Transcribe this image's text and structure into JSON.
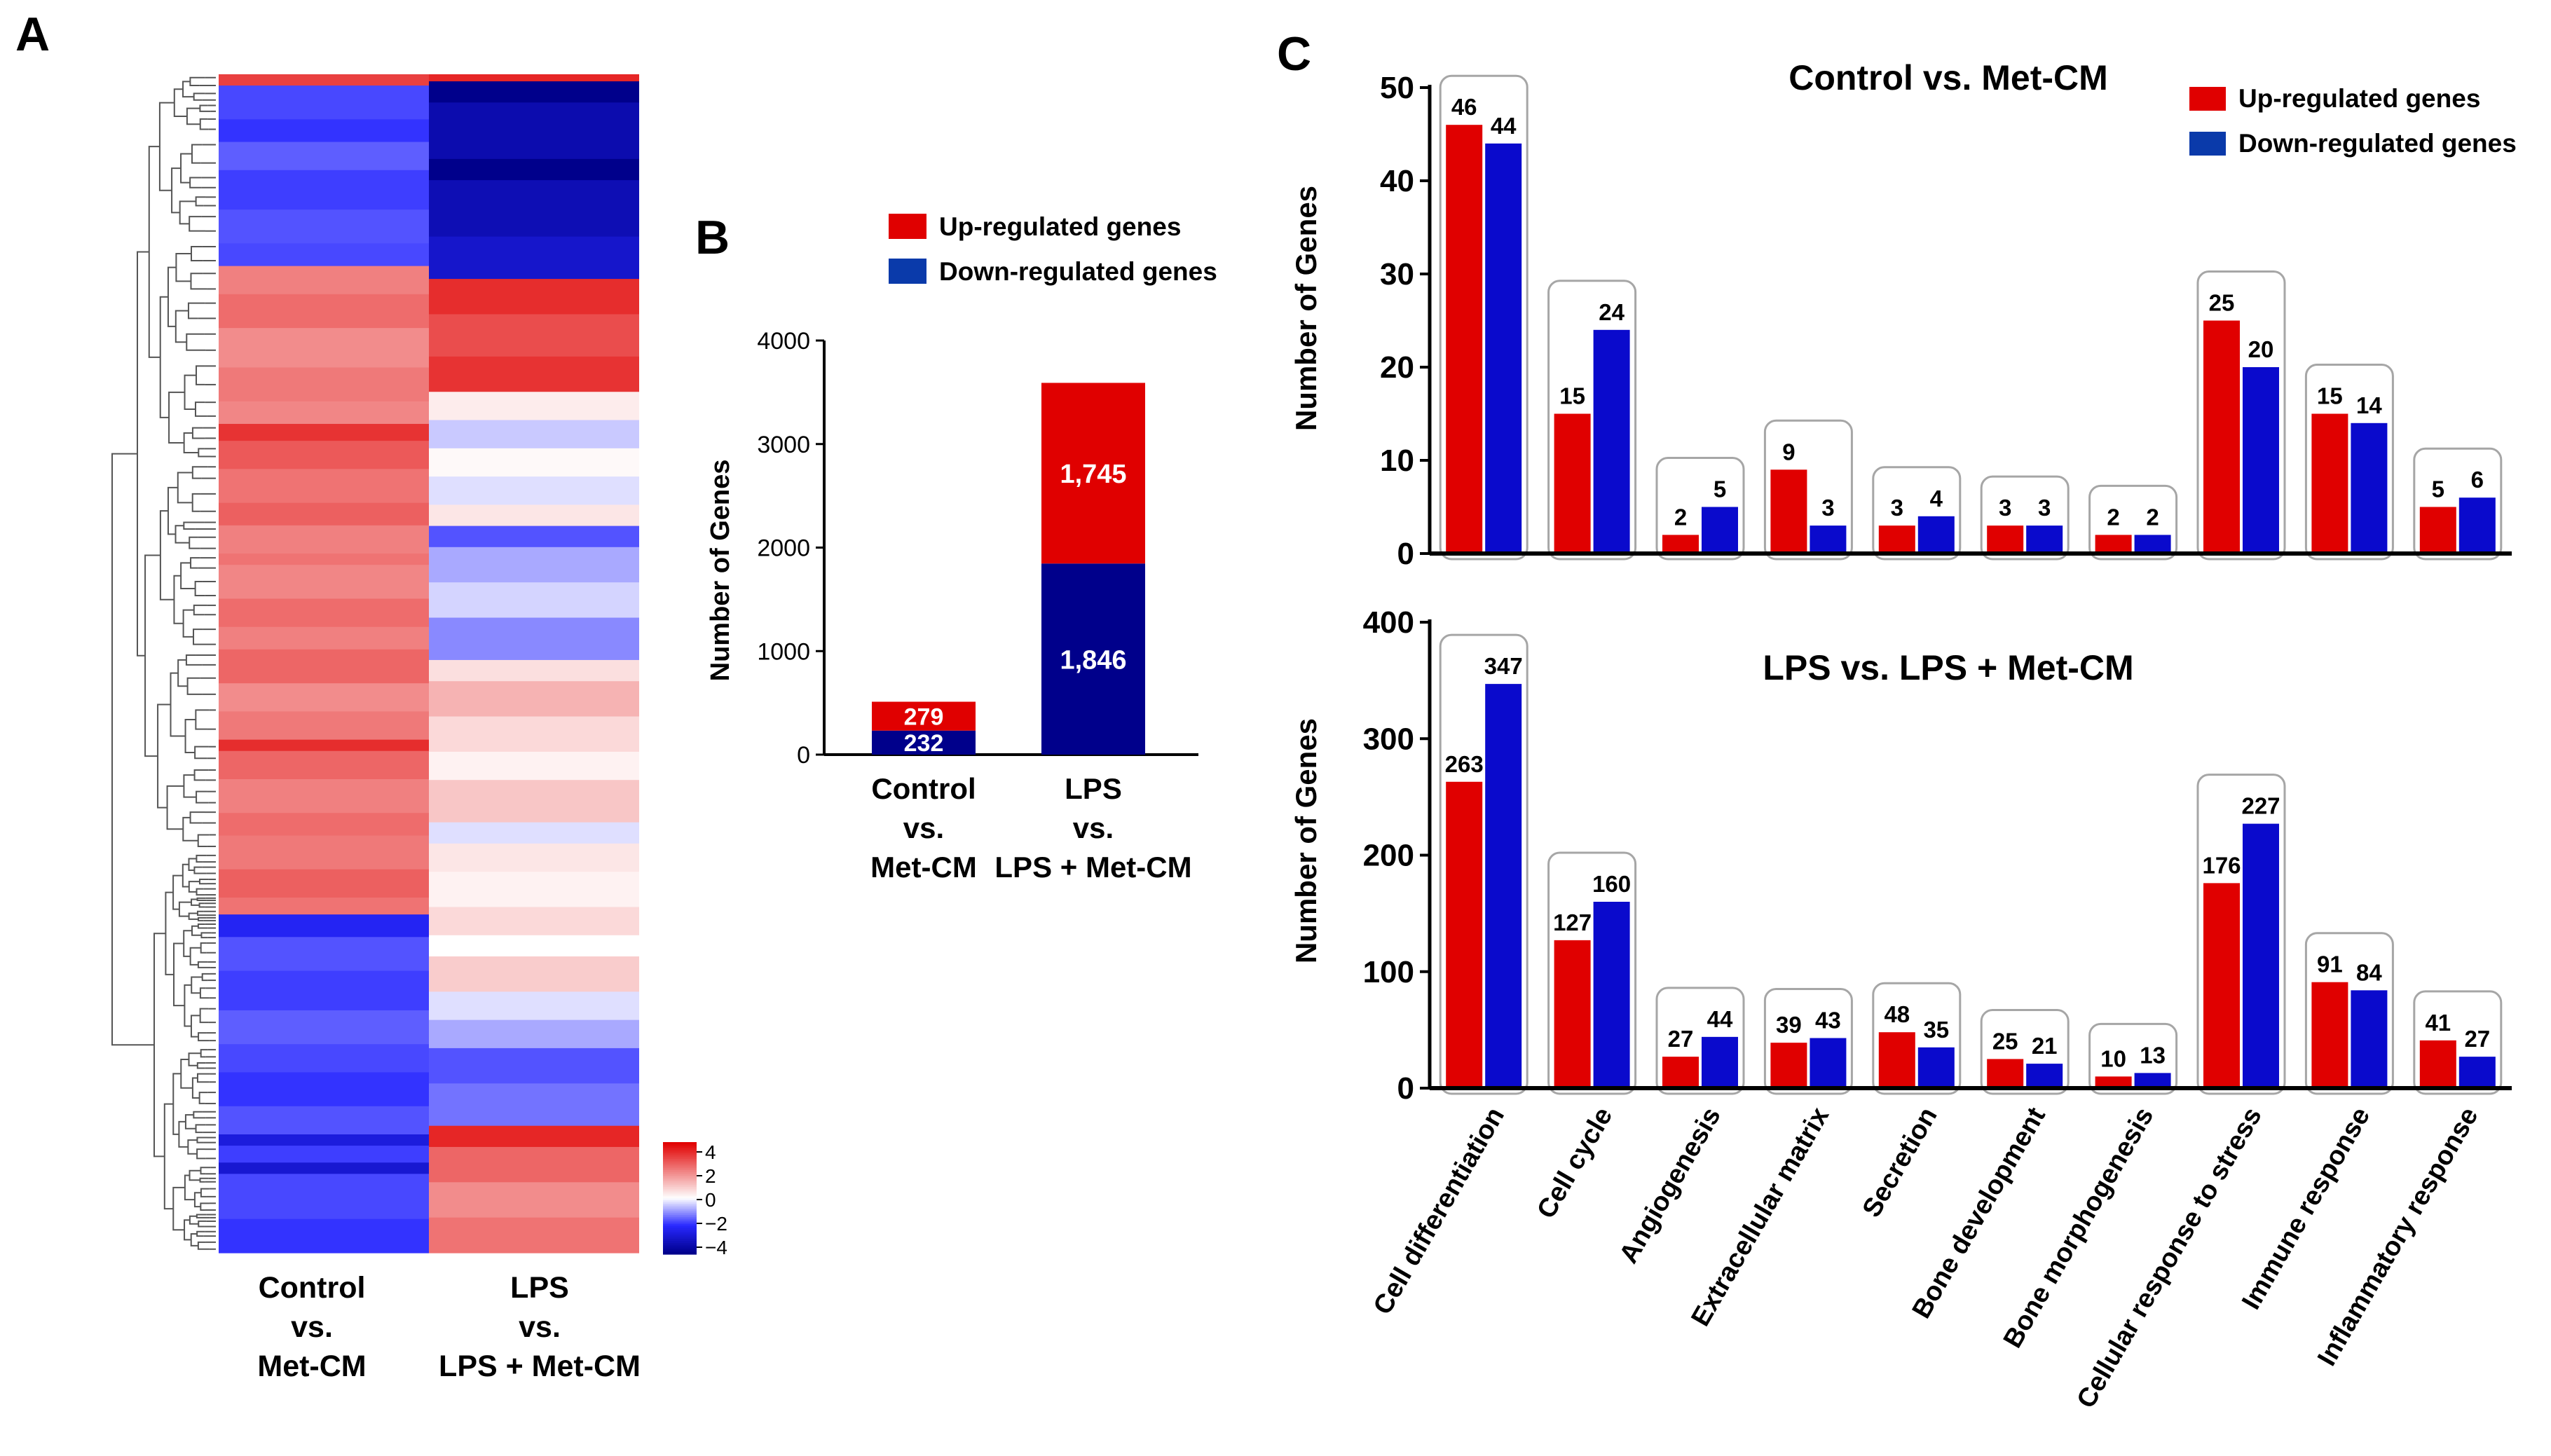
{
  "figure": {
    "panel_labels": {
      "a": "A",
      "b": "B",
      "c": "C"
    },
    "colors": {
      "up": "#e00000",
      "down": "#0a0acc",
      "down_dark": "#00008b",
      "axis": "#000000",
      "group_box": "#a6a6a6"
    }
  },
  "heatmap": {
    "columns": [
      {
        "lines": [
          "Control",
          "vs.",
          "Met-CM"
        ]
      },
      {
        "lines": [
          "LPS",
          "vs.",
          "LPS + Met-CM"
        ]
      }
    ],
    "colorbar": {
      "ticks": [
        "4",
        "2",
        "0",
        "−2",
        "−4"
      ],
      "range": [
        -4,
        4
      ]
    },
    "col1_segments": [
      {
        "v": 3.0,
        "w": 2
      },
      {
        "v": -1.7,
        "w": 6
      },
      {
        "v": -1.9,
        "w": 4
      },
      {
        "v": -1.5,
        "w": 5
      },
      {
        "v": -1.8,
        "w": 7
      },
      {
        "v": -1.6,
        "w": 6
      },
      {
        "v": -1.7,
        "w": 4
      },
      {
        "v": 2.0,
        "w": 5
      },
      {
        "v": 2.3,
        "w": 6
      },
      {
        "v": 1.8,
        "w": 7
      },
      {
        "v": 2.1,
        "w": 6
      },
      {
        "v": 1.9,
        "w": 4
      },
      {
        "v": 3.2,
        "w": 3
      },
      {
        "v": 2.6,
        "w": 5
      },
      {
        "v": 2.2,
        "w": 6
      },
      {
        "v": 2.5,
        "w": 4
      },
      {
        "v": 2.0,
        "w": 5
      },
      {
        "v": 2.2,
        "w": 2
      },
      {
        "v": 1.9,
        "w": 6
      },
      {
        "v": 2.3,
        "w": 5
      },
      {
        "v": 2.0,
        "w": 4
      },
      {
        "v": 2.4,
        "w": 6
      },
      {
        "v": 1.8,
        "w": 5
      },
      {
        "v": 2.1,
        "w": 5
      },
      {
        "v": 3.3,
        "w": 2
      },
      {
        "v": 2.4,
        "w": 5
      },
      {
        "v": 2.0,
        "w": 6
      },
      {
        "v": 2.3,
        "w": 4
      },
      {
        "v": 2.1,
        "w": 6
      },
      {
        "v": 2.5,
        "w": 5
      },
      {
        "v": 2.2,
        "w": 3
      },
      {
        "v": -2.2,
        "w": 4
      },
      {
        "v": -1.6,
        "w": 6
      },
      {
        "v": -1.8,
        "w": 7
      },
      {
        "v": -1.5,
        "w": 6
      },
      {
        "v": -1.7,
        "w": 5
      },
      {
        "v": -1.9,
        "w": 6
      },
      {
        "v": -1.6,
        "w": 5
      },
      {
        "v": -2.6,
        "w": 2
      },
      {
        "v": -1.8,
        "w": 3
      },
      {
        "v": -2.8,
        "w": 2
      },
      {
        "v": -1.7,
        "w": 8
      },
      {
        "v": -1.9,
        "w": 6
      }
    ],
    "col2_segments": [
      {
        "v": 3.4,
        "w": 1
      },
      {
        "v": -4.0,
        "w": 3
      },
      {
        "v": -3.4,
        "w": 8
      },
      {
        "v": -4.2,
        "w": 3
      },
      {
        "v": -3.3,
        "w": 8
      },
      {
        "v": -2.9,
        "w": 6
      },
      {
        "v": 3.3,
        "w": 5
      },
      {
        "v": 2.8,
        "w": 6
      },
      {
        "v": 3.2,
        "w": 5
      },
      {
        "v": 0.3,
        "w": 4
      },
      {
        "v": -0.5,
        "w": 4
      },
      {
        "v": 0.1,
        "w": 4
      },
      {
        "v": -0.3,
        "w": 4
      },
      {
        "v": 0.4,
        "w": 3
      },
      {
        "v": -1.6,
        "w": 3
      },
      {
        "v": -0.8,
        "w": 5
      },
      {
        "v": -0.4,
        "w": 5
      },
      {
        "v": -1.1,
        "w": 6
      },
      {
        "v": 0.5,
        "w": 3
      },
      {
        "v": 1.2,
        "w": 5
      },
      {
        "v": 0.6,
        "w": 5
      },
      {
        "v": 0.2,
        "w": 4
      },
      {
        "v": 0.9,
        "w": 6
      },
      {
        "v": -0.3,
        "w": 3
      },
      {
        "v": 0.4,
        "w": 4
      },
      {
        "v": 0.2,
        "w": 5
      },
      {
        "v": 0.6,
        "w": 4
      },
      {
        "v": 0.0,
        "w": 3
      },
      {
        "v": 0.8,
        "w": 5
      },
      {
        "v": -0.3,
        "w": 4
      },
      {
        "v": -0.8,
        "w": 4
      },
      {
        "v": -1.6,
        "w": 5
      },
      {
        "v": -1.3,
        "w": 6
      },
      {
        "v": 3.4,
        "w": 3
      },
      {
        "v": 2.4,
        "w": 5
      },
      {
        "v": 1.8,
        "w": 5
      },
      {
        "v": 2.2,
        "w": 5
      }
    ]
  },
  "panel_b": {
    "legend": [
      "Up-regulated genes",
      "Down-regulated genes"
    ],
    "ylabel": "Number of Genes"
  },
  "panel_c": {
    "categories": [
      "Cell differentiation",
      "Cell cycle",
      "Angiogenesis",
      "Extracellular matrix",
      "Secretion",
      "Bone development",
      "Bone morphogenesis",
      "Cellular response to stress",
      "Immune response",
      "Inflammatory response"
    ],
    "legend": [
      "Up-regulated genes",
      "Down-regulated genes"
    ],
    "ylabel": "Number of Genes"
  },
  "chart_data": [
    {
      "id": "B",
      "type": "bar",
      "stacked": true,
      "categories": [
        [
          "Control",
          "vs.",
          "Met-CM"
        ],
        [
          "LPS",
          "vs.",
          "LPS + Met-CM"
        ]
      ],
      "series": [
        {
          "name": "Down-regulated genes",
          "values": [
            232,
            1846
          ],
          "labels": [
            "232",
            "1,846"
          ]
        },
        {
          "name": "Up-regulated genes",
          "values": [
            279,
            1745
          ],
          "labels": [
            "279",
            "1,745"
          ]
        }
      ],
      "ylabel": "Number of Genes",
      "ylim": [
        0,
        4000
      ],
      "yticks": [
        0,
        1000,
        2000,
        3000,
        4000
      ]
    },
    {
      "id": "C-top",
      "type": "bar",
      "title": "Control vs. Met-CM",
      "categories": [
        "Cell differentiation",
        "Cell cycle",
        "Angiogenesis",
        "Extracellular matrix",
        "Secretion",
        "Bone development",
        "Bone morphogenesis",
        "Cellular response to stress",
        "Immune response",
        "Inflammatory response"
      ],
      "series": [
        {
          "name": "Up-regulated genes",
          "values": [
            46,
            15,
            2,
            9,
            3,
            3,
            2,
            25,
            15,
            5
          ]
        },
        {
          "name": "Down-regulated genes",
          "values": [
            44,
            24,
            5,
            3,
            4,
            3,
            2,
            20,
            14,
            6
          ]
        }
      ],
      "ylabel": "Number of Genes",
      "ylim": [
        0,
        50
      ],
      "yticks": [
        0,
        10,
        20,
        30,
        40,
        50
      ]
    },
    {
      "id": "C-bottom",
      "type": "bar",
      "title": "LPS vs. LPS + Met-CM",
      "categories": [
        "Cell differentiation",
        "Cell cycle",
        "Angiogenesis",
        "Extracellular matrix",
        "Secretion",
        "Bone development",
        "Bone morphogenesis",
        "Cellular response to stress",
        "Immune response",
        "Inflammatory response"
      ],
      "series": [
        {
          "name": "Up-regulated genes",
          "values": [
            263,
            127,
            27,
            39,
            48,
            25,
            10,
            176,
            91,
            41
          ]
        },
        {
          "name": "Down-regulated genes",
          "values": [
            347,
            160,
            44,
            43,
            35,
            21,
            13,
            227,
            84,
            27
          ]
        }
      ],
      "ylabel": "Number of Genes",
      "ylim": [
        0,
        400
      ],
      "yticks": [
        0,
        100,
        200,
        300,
        400
      ]
    }
  ]
}
